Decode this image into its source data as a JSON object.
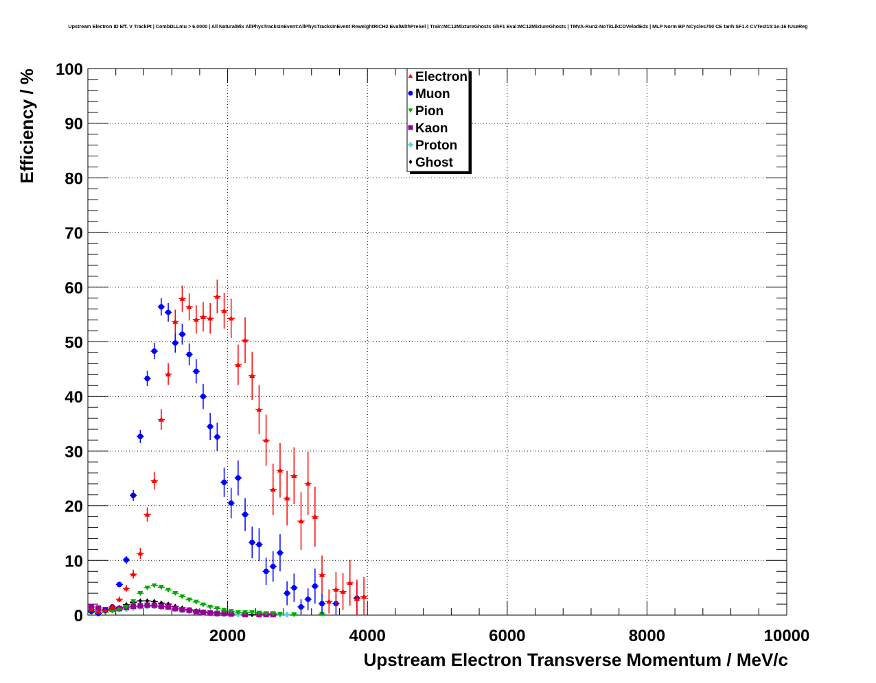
{
  "chart_data": {
    "type": "scatter",
    "title": "Upstream Electron ID Eff. V TrackPt | CombDLLmu > 6.0000 | All NaturalMix AllPhysTracksInEvent:AllPhysTracksInEvent ReweightRICH2 EvalWithPreSel | Train:MC12MixtureGhosts GhF1 Eval:MC12MixtureGhosts | TMVA-Run2-NoTkLikCDVelodEdx | MLP Norm BP NCycles750 CE tanh SF1.4 CVTest15:1e-16 !UseReg",
    "xlabel": "Upstream Electron Transverse Momentum / MeV/c",
    "ylabel": "Efficiency / %",
    "xlim": [
      0,
      10000
    ],
    "ylim": [
      0,
      100
    ],
    "xticks": [
      "2000",
      "4000",
      "6000",
      "8000",
      "10000"
    ],
    "yticks": [
      "0",
      "10",
      "20",
      "30",
      "40",
      "50",
      "60",
      "70",
      "80",
      "90",
      "100"
    ],
    "grid": true,
    "legend_position": "top-center",
    "bin_width": 100,
    "series": [
      {
        "name": "Electron",
        "color": "#ff0000",
        "marker": "triangle-up",
        "x": [
          50,
          150,
          250,
          350,
          450,
          550,
          650,
          750,
          850,
          950,
          1050,
          1150,
          1250,
          1350,
          1450,
          1550,
          1650,
          1750,
          1850,
          1950,
          2050,
          2150,
          2250,
          2350,
          2450,
          2550,
          2650,
          2750,
          2850,
          2950,
          3050,
          3150,
          3250,
          3350,
          3450,
          3550,
          3650,
          3750,
          3850,
          3950
        ],
        "y": [
          1.0,
          0.6,
          0.9,
          1.5,
          2.9,
          4.9,
          7.5,
          11.3,
          18.4,
          24.6,
          35.8,
          44.1,
          53.7,
          57.9,
          56.4,
          54.1,
          54.6,
          54.3,
          58.3,
          55.7,
          54.3,
          45.8,
          50.3,
          43.8,
          37.6,
          32.0,
          23.0,
          26.5,
          21.4,
          25.5,
          17.2,
          24.1,
          18.0,
          7.4,
          2.5,
          4.7,
          4.3,
          5.9,
          3.0,
          3.4
        ],
        "yerr": [
          0.3,
          0.2,
          0.3,
          0.4,
          0.5,
          0.6,
          0.8,
          1.0,
          1.3,
          1.6,
          1.9,
          2.0,
          2.2,
          2.4,
          2.5,
          2.6,
          2.7,
          2.8,
          3.1,
          3.3,
          3.6,
          3.7,
          4.2,
          4.4,
          4.5,
          4.7,
          4.7,
          5.0,
          5.0,
          5.2,
          5.3,
          5.8,
          5.5,
          3.5,
          2.2,
          3.2,
          3.4,
          4.2,
          3.5,
          3.6
        ]
      },
      {
        "name": "Muon",
        "color": "#0000ff",
        "marker": "circle",
        "x": [
          50,
          150,
          250,
          350,
          450,
          550,
          650,
          750,
          850,
          950,
          1050,
          1150,
          1250,
          1350,
          1450,
          1550,
          1650,
          1750,
          1850,
          1950,
          2050,
          2150,
          2250,
          2350,
          2450,
          2550,
          2650,
          2750,
          2850,
          2950,
          3050,
          3150,
          3250,
          3350,
          3550,
          3850
        ],
        "y": [
          0.7,
          0.3,
          0.9,
          1.5,
          5.6,
          10.1,
          21.9,
          32.7,
          43.3,
          48.3,
          56.4,
          55.4,
          49.8,
          51.4,
          47.7,
          44.6,
          40.0,
          34.5,
          32.6,
          24.3,
          20.5,
          25.1,
          18.4,
          13.3,
          12.9,
          8.0,
          8.9,
          11.4,
          4.0,
          5.0,
          1.5,
          2.9,
          5.3,
          2.1,
          2.1,
          3.1
        ],
        "yerr": [
          0.2,
          0.1,
          0.3,
          0.3,
          0.5,
          0.7,
          1.0,
          1.2,
          1.4,
          1.5,
          1.6,
          1.7,
          1.8,
          1.9,
          2.0,
          2.2,
          2.3,
          2.5,
          2.6,
          2.7,
          2.8,
          3.2,
          3.0,
          2.9,
          3.0,
          2.5,
          2.8,
          3.4,
          2.2,
          2.6,
          1.4,
          2.0,
          3.2,
          1.8,
          2.0,
          3.0
        ]
      },
      {
        "name": "Pion",
        "color": "#00aa00",
        "marker": "triangle-down",
        "x": [
          50,
          150,
          250,
          350,
          450,
          550,
          650,
          750,
          850,
          950,
          1050,
          1150,
          1250,
          1350,
          1450,
          1550,
          1650,
          1750,
          1850,
          1950,
          2050,
          2150,
          2250,
          2350,
          2450,
          2550,
          2650,
          2750,
          2950,
          3350
        ],
        "y": [
          0.5,
          0.3,
          0.5,
          0.8,
          1.0,
          1.5,
          2.5,
          4.0,
          5.0,
          5.4,
          5.1,
          4.6,
          4.0,
          3.4,
          2.8,
          2.4,
          1.9,
          1.5,
          1.2,
          0.9,
          0.7,
          0.5,
          0.5,
          0.5,
          0.4,
          0.3,
          0.3,
          0.2,
          0.1,
          0.2
        ]
      },
      {
        "name": "Kaon",
        "color": "#990099",
        "marker": "square",
        "x": [
          50,
          150,
          250,
          350,
          450,
          550,
          650,
          750,
          850,
          950,
          1050,
          1150,
          1250,
          1350,
          1450,
          1550,
          1650,
          1750,
          1850,
          1950,
          2050,
          2250,
          2450,
          2550,
          2650
        ],
        "y": [
          1.5,
          1.3,
          1.0,
          1.1,
          1.2,
          1.4,
          1.6,
          1.7,
          1.8,
          1.8,
          1.6,
          1.5,
          1.2,
          1.0,
          0.9,
          0.6,
          0.5,
          0.4,
          0.3,
          0.3,
          0.2,
          0.1,
          0.1,
          0.1,
          0.1
        ]
      },
      {
        "name": "Proton",
        "color": "#66cccc",
        "marker": "cross",
        "x": [
          50,
          150,
          250,
          350,
          450,
          550,
          650,
          750,
          850,
          950,
          1050,
          1150,
          1250,
          1350,
          1450,
          1550,
          1650,
          1750,
          1850,
          1950,
          2150,
          2450,
          2750,
          2850
        ],
        "y": [
          1.0,
          0.8,
          0.9,
          0.9,
          1.0,
          1.1,
          1.3,
          1.5,
          1.6,
          1.6,
          1.5,
          1.4,
          1.1,
          0.9,
          0.7,
          0.5,
          0.4,
          0.3,
          0.2,
          0.2,
          0.1,
          0.1,
          0.1,
          0.1
        ]
      },
      {
        "name": "Ghost",
        "color": "#000000",
        "marker": "diamond",
        "x": [
          50,
          150,
          250,
          350,
          450,
          550,
          650,
          750,
          850,
          950,
          1050,
          1150,
          1250,
          1350,
          1450,
          1550,
          1650,
          1750,
          1850,
          1950,
          2050,
          2150,
          2250,
          2350,
          2450,
          2550,
          2650,
          2750
        ],
        "y": [
          1.0,
          0.9,
          1.0,
          1.2,
          1.4,
          1.9,
          2.3,
          2.6,
          2.6,
          2.5,
          2.2,
          2.0,
          1.6,
          1.3,
          1.0,
          0.8,
          0.6,
          0.5,
          0.4,
          0.3,
          0.2,
          0.2,
          0.1,
          0.1,
          0.1,
          0.1,
          0.1,
          0.1
        ]
      }
    ]
  }
}
